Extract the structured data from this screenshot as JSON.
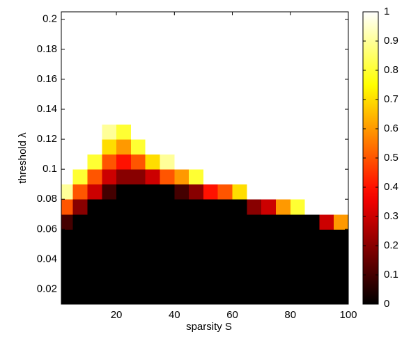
{
  "chart_data": {
    "type": "heatmap",
    "xlabel": "sparsity S",
    "ylabel": "threshold λ",
    "xlim": [
      1,
      100
    ],
    "ylim": [
      0.01,
      0.205
    ],
    "xticks": [
      20,
      40,
      60,
      80,
      100
    ],
    "yticks": [
      0.02,
      0.04,
      0.06,
      0.08,
      0.1,
      0.12,
      0.14,
      0.16,
      0.18,
      0.2
    ],
    "xbins": [
      0,
      5,
      10,
      15,
      20,
      25,
      30,
      35,
      40,
      45,
      50,
      55,
      60,
      65,
      70,
      75,
      80,
      85,
      90,
      95,
      100
    ],
    "ybins": [
      0.01,
      0.02,
      0.03,
      0.04,
      0.05,
      0.06,
      0.07,
      0.08,
      0.09,
      0.1,
      0.11,
      0.12,
      0.13,
      0.14,
      0.15,
      0.16,
      0.17,
      0.18,
      0.19,
      0.2
    ],
    "colormap": "hot",
    "clim": [
      0,
      1
    ],
    "colorbar_ticks": [
      0,
      0.1,
      0.2,
      0.3,
      0.4,
      0.5,
      0.6,
      0.7,
      0.8,
      0.9,
      1
    ],
    "z": [
      [
        0,
        0,
        0,
        0,
        0,
        0,
        0,
        0,
        0,
        0,
        0,
        0,
        0,
        0,
        0,
        0,
        0,
        0,
        0,
        0
      ],
      [
        0,
        0,
        0,
        0,
        0,
        0,
        0,
        0,
        0,
        0,
        0,
        0,
        0,
        0,
        0,
        0,
        0,
        0,
        0,
        0
      ],
      [
        0,
        0,
        0,
        0,
        0,
        0,
        0,
        0,
        0,
        0,
        0,
        0,
        0,
        0,
        0,
        0,
        0,
        0,
        0,
        0
      ],
      [
        0,
        0,
        0,
        0,
        0,
        0,
        0,
        0,
        0,
        0,
        0,
        0,
        0,
        0,
        0,
        0,
        0,
        0,
        0,
        0
      ],
      [
        0,
        0,
        0,
        0,
        0,
        0,
        0,
        0,
        0,
        0,
        0,
        0,
        0,
        0,
        0,
        0,
        0,
        0,
        0,
        0
      ],
      [
        0.1,
        0,
        0,
        0,
        0,
        0,
        0,
        0,
        0,
        0,
        0,
        0,
        0,
        0,
        0,
        0,
        0,
        0,
        0.3,
        0.6
      ],
      [
        0.5,
        0.2,
        0,
        0,
        0,
        0,
        0,
        0,
        0,
        0,
        0,
        0,
        0,
        0.2,
        0.3,
        0.6,
        0.8,
        1,
        1,
        1
      ],
      [
        0.9,
        0.5,
        0.3,
        0.1,
        0,
        0,
        0,
        0,
        0.1,
        0.2,
        0.4,
        0.5,
        0.7,
        1,
        1,
        1,
        1,
        1,
        1,
        1
      ],
      [
        1,
        0.8,
        0.5,
        0.3,
        0.2,
        0.2,
        0.3,
        0.5,
        0.6,
        0.8,
        1,
        1,
        1,
        1,
        1,
        1,
        1,
        1,
        1,
        1
      ],
      [
        1,
        1,
        0.8,
        0.5,
        0.4,
        0.5,
        0.7,
        0.9,
        1,
        1,
        1,
        1,
        1,
        1,
        1,
        1,
        1,
        1,
        1,
        1
      ],
      [
        1,
        1,
        1,
        0.7,
        0.6,
        0.8,
        1,
        1,
        1,
        1,
        1,
        1,
        1,
        1,
        1,
        1,
        1,
        1,
        1,
        1
      ],
      [
        1,
        1,
        1,
        0.9,
        0.8,
        1,
        1,
        1,
        1,
        1,
        1,
        1,
        1,
        1,
        1,
        1,
        1,
        1,
        1,
        1
      ],
      [
        1,
        1,
        1,
        1,
        1,
        1,
        1,
        1,
        1,
        1,
        1,
        1,
        1,
        1,
        1,
        1,
        1,
        1,
        1,
        1
      ],
      [
        1,
        1,
        1,
        1,
        1,
        1,
        1,
        1,
        1,
        1,
        1,
        1,
        1,
        1,
        1,
        1,
        1,
        1,
        1,
        1
      ],
      [
        1,
        1,
        1,
        1,
        1,
        1,
        1,
        1,
        1,
        1,
        1,
        1,
        1,
        1,
        1,
        1,
        1,
        1,
        1,
        1
      ],
      [
        1,
        1,
        1,
        1,
        1,
        1,
        1,
        1,
        1,
        1,
        1,
        1,
        1,
        1,
        1,
        1,
        1,
        1,
        1,
        1
      ],
      [
        1,
        1,
        1,
        1,
        1,
        1,
        1,
        1,
        1,
        1,
        1,
        1,
        1,
        1,
        1,
        1,
        1,
        1,
        1,
        1
      ],
      [
        1,
        1,
        1,
        1,
        1,
        1,
        1,
        1,
        1,
        1,
        1,
        1,
        1,
        1,
        1,
        1,
        1,
        1,
        1,
        1
      ],
      [
        1,
        1,
        1,
        1,
        1,
        1,
        1,
        1,
        1,
        1,
        1,
        1,
        1,
        1,
        1,
        1,
        1,
        1,
        1,
        1
      ]
    ]
  }
}
